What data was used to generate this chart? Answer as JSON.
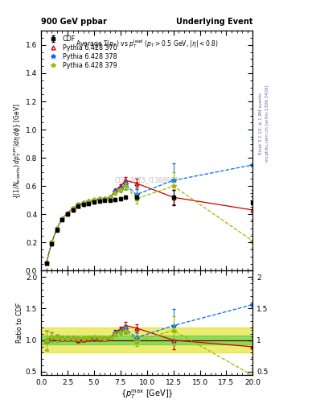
{
  "title_left": "900 GeV ppbar",
  "title_right": "Underlying Event",
  "plot_title": "Average Σ(p_T) vs p_T^{lead} (p_T > 0.5 GeV, |η| < 0.8)",
  "watermark": "CDF_2015_I1388868",
  "right_label_top": "Rivet 3.1.10, ≥ 1.9M events",
  "right_label_bot": "mcplots.cern.ch [arXiv:1306.3436]",
  "ylim_main": [
    0,
    1.7
  ],
  "ylim_ratio": [
    0.45,
    2.1
  ],
  "cdf_x": [
    0.5,
    1.0,
    1.5,
    2.0,
    2.5,
    3.0,
    3.5,
    4.0,
    4.5,
    5.0,
    5.5,
    6.0,
    6.5,
    7.0,
    7.5,
    8.0,
    9.0,
    12.5,
    20.0
  ],
  "cdf_y": [
    0.055,
    0.19,
    0.29,
    0.36,
    0.4,
    0.43,
    0.46,
    0.47,
    0.475,
    0.485,
    0.495,
    0.5,
    0.5,
    0.505,
    0.51,
    0.52,
    0.52,
    0.52,
    0.48
  ],
  "cdf_yerr": [
    0.008,
    0.012,
    0.012,
    0.012,
    0.012,
    0.012,
    0.01,
    0.01,
    0.01,
    0.01,
    0.01,
    0.01,
    0.01,
    0.01,
    0.01,
    0.012,
    0.012,
    0.055,
    0.045
  ],
  "p370_x": [
    0.5,
    1.0,
    1.5,
    2.0,
    2.5,
    3.0,
    3.5,
    4.0,
    4.5,
    5.0,
    5.5,
    6.0,
    6.5,
    7.0,
    7.5,
    8.0,
    9.0,
    12.5,
    20.0
  ],
  "p370_y": [
    0.055,
    0.2,
    0.3,
    0.37,
    0.41,
    0.44,
    0.46,
    0.475,
    0.485,
    0.495,
    0.505,
    0.51,
    0.515,
    0.57,
    0.6,
    0.64,
    0.62,
    0.52,
    0.43
  ],
  "p370_yerr": [
    0.003,
    0.005,
    0.005,
    0.005,
    0.005,
    0.005,
    0.005,
    0.005,
    0.005,
    0.005,
    0.005,
    0.005,
    0.005,
    0.01,
    0.015,
    0.025,
    0.03,
    0.05,
    0.07
  ],
  "p378_x": [
    0.5,
    1.0,
    1.5,
    2.0,
    2.5,
    3.0,
    3.5,
    4.0,
    4.5,
    5.0,
    5.5,
    6.0,
    6.5,
    7.0,
    7.5,
    8.0,
    9.0,
    12.5,
    20.0
  ],
  "p378_y": [
    0.055,
    0.2,
    0.3,
    0.37,
    0.41,
    0.44,
    0.47,
    0.48,
    0.49,
    0.5,
    0.51,
    0.51,
    0.52,
    0.56,
    0.58,
    0.61,
    0.54,
    0.64,
    0.75
  ],
  "p378_yerr": [
    0.003,
    0.005,
    0.005,
    0.005,
    0.005,
    0.005,
    0.005,
    0.005,
    0.005,
    0.005,
    0.005,
    0.005,
    0.005,
    0.01,
    0.015,
    0.03,
    0.04,
    0.12,
    0.18
  ],
  "p379_x": [
    0.5,
    1.0,
    1.5,
    2.0,
    2.5,
    3.0,
    3.5,
    4.0,
    4.5,
    5.0,
    5.5,
    6.0,
    6.5,
    7.0,
    7.5,
    8.0,
    9.0,
    12.5,
    20.0
  ],
  "p379_y": [
    0.055,
    0.2,
    0.3,
    0.37,
    0.41,
    0.44,
    0.47,
    0.48,
    0.49,
    0.505,
    0.51,
    0.51,
    0.52,
    0.55,
    0.57,
    0.6,
    0.51,
    0.6,
    0.21
  ],
  "p379_yerr": [
    0.003,
    0.005,
    0.005,
    0.005,
    0.005,
    0.005,
    0.005,
    0.005,
    0.005,
    0.005,
    0.005,
    0.005,
    0.005,
    0.01,
    0.015,
    0.025,
    0.035,
    0.1,
    0.05
  ],
  "color_cdf": "#000000",
  "color_p370": "#cc0000",
  "color_p378": "#0066ff",
  "color_p379": "#99bb00",
  "band_green_lo": 0.93,
  "band_green_hi": 1.07,
  "band_yellow_lo": 0.8,
  "band_yellow_hi": 1.2,
  "band_green_color": "#44cc44",
  "band_yellow_color": "#dddd00",
  "band_green_alpha": 0.55,
  "band_yellow_alpha": 0.55
}
